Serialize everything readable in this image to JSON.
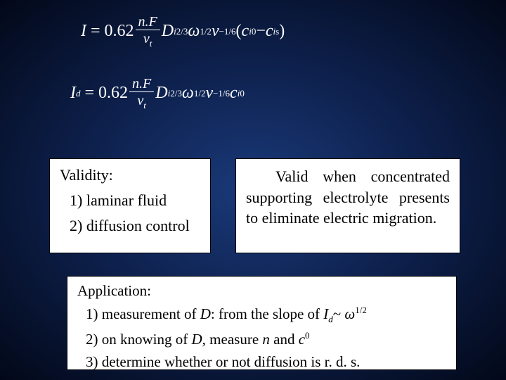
{
  "background": {
    "gradient_center": "#1a3a7a",
    "gradient_mid": "#0d1f4a",
    "gradient_edge": "#020818"
  },
  "equations": {
    "eq1": {
      "lhs": "I",
      "coeff": "0.62",
      "frac_num": "n.F",
      "frac_den_var": "v",
      "frac_den_sub": "t",
      "D_var": "D",
      "D_sub": "i",
      "D_exp": "2/3",
      "omega_var": "ω",
      "omega_exp": "1/2",
      "nu_var": "ν",
      "nu_exp": "−1/6",
      "paren_open": "(",
      "c0_var": "c",
      "c0_sub": "i",
      "c0_sup": "0",
      "minus": " − ",
      "cs_var": "c",
      "cs_sub": "i",
      "cs_sup": "s",
      "paren_close": ")"
    },
    "eq2": {
      "lhs_var": "I",
      "lhs_sub": "d",
      "coeff": "0.62",
      "frac_num": "n.F",
      "frac_den_var": "v",
      "frac_den_sub": "t",
      "D_var": "D",
      "D_sub": "i",
      "D_exp": "2/3",
      "omega_var": "ω",
      "omega_exp": "1/2",
      "nu_var": "ν",
      "nu_exp": "−1/6",
      "c0_var": "c",
      "c0_sub": "i",
      "c0_sup": "0"
    }
  },
  "validity": {
    "heading": "Validity:",
    "items": [
      "1) laminar fluid",
      "2) diffusion control"
    ]
  },
  "note": {
    "text_1": "Valid when concentrated supporting electrolyte presents to eliminate electric migration."
  },
  "application": {
    "heading": "Application:",
    "item1_pre": "1) measurement of ",
    "item1_D": "D",
    "item1_mid": ": from the slope of ",
    "item1_Id_I": "I",
    "item1_Id_d": "d",
    "item1_tilde": "~ ",
    "item1_omega": "ω",
    "item1_exp": "1/2",
    "item2_pre": "2) on knowing of ",
    "item2_D": "D",
    "item2_mid": ", measure ",
    "item2_n": "n",
    "item2_and": " and ",
    "item2_c": "c",
    "item2_c_sup": "0",
    "item3": "3) determine whether or not diffusion is r. d. s."
  },
  "style": {
    "text_color_slide": "#ffffff",
    "text_color_box": "#000000",
    "box_bg": "#ffffff",
    "box_border": "#000000",
    "font_family": "Times New Roman",
    "eq_fontsize_pt": 18,
    "box_fontsize_pt": 16
  }
}
